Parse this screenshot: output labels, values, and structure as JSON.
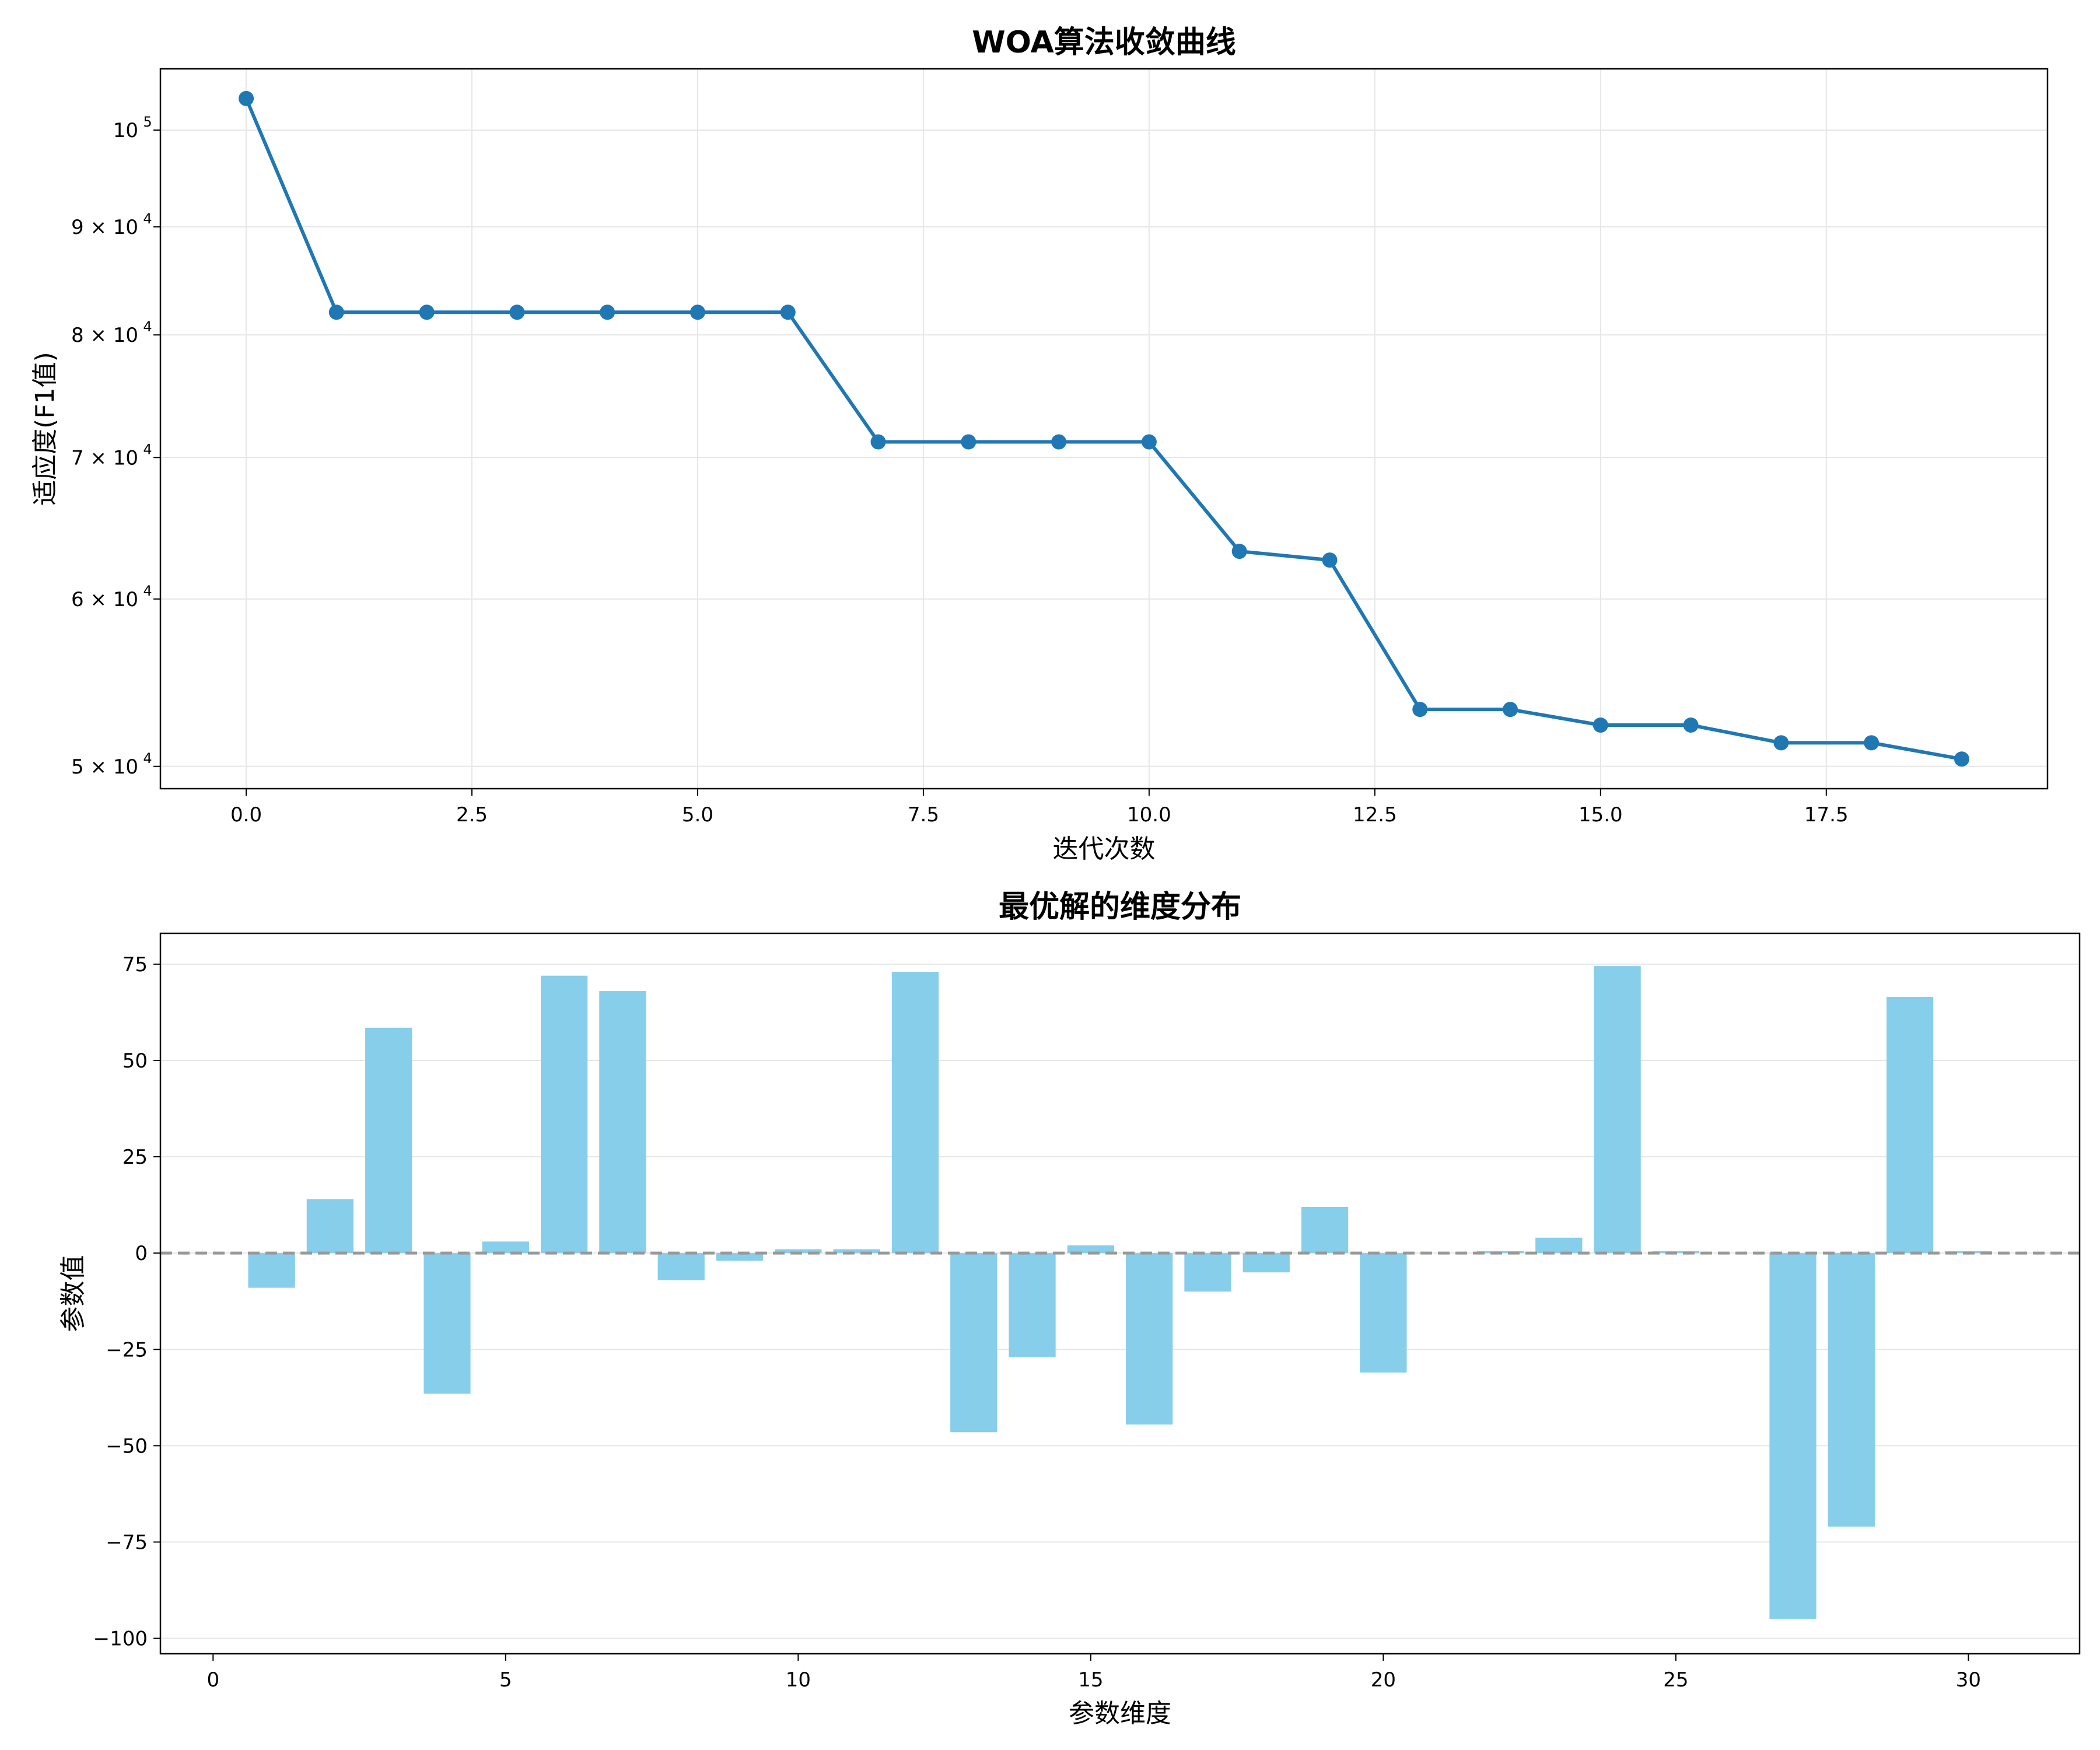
{
  "chart_data": [
    {
      "type": "line",
      "title": "WOA算法收敛曲线",
      "xlabel": "迭代次数",
      "ylabel": "适应度(F1值)",
      "yscale": "log",
      "xlim": [
        -0.95,
        19.95
      ],
      "ylim": [
        48800,
        106900
      ],
      "grid": true,
      "color": "#1f77b4",
      "marker": "circle",
      "x_ticks": [
        0.0,
        2.5,
        5.0,
        7.5,
        10.0,
        12.5,
        15.0,
        17.5
      ],
      "x_tick_labels": [
        "0.0",
        "2.5",
        "5.0",
        "7.5",
        "10.0",
        "12.5",
        "15.0",
        "17.5"
      ],
      "y_ticks": [
        {
          "value": 50000,
          "label": "5 × 10",
          "exp": "4"
        },
        {
          "value": 60000,
          "label": "6 × 10",
          "exp": "4"
        },
        {
          "value": 70000,
          "label": "7 × 10",
          "exp": "4"
        },
        {
          "value": 80000,
          "label": "8 × 10",
          "exp": "4"
        },
        {
          "value": 90000,
          "label": "9 × 10",
          "exp": "4"
        },
        {
          "value": 100000,
          "label": "10",
          "exp": "5"
        }
      ],
      "x": [
        0,
        1,
        2,
        3,
        4,
        5,
        6,
        7,
        8,
        9,
        10,
        11,
        12,
        13,
        14,
        15,
        16,
        17,
        18,
        19
      ],
      "y": [
        103500,
        82000,
        82000,
        82000,
        82000,
        82000,
        82000,
        71200,
        71200,
        71200,
        71200,
        63200,
        62600,
        53200,
        53200,
        52300,
        52300,
        51300,
        51300,
        50400
      ]
    },
    {
      "type": "bar",
      "title": "最优解的维度分布",
      "xlabel": "参数维度",
      "ylabel": "参数值",
      "xlim": [
        -0.9,
        31.9
      ],
      "ylim": [
        -104,
        83
      ],
      "grid": true,
      "grid_axis": "y",
      "color": "#87ceeb",
      "zero_line": {
        "value": 0,
        "style": "dashed",
        "color": "#999999"
      },
      "x_ticks": [
        0,
        5,
        10,
        15,
        20,
        25,
        30
      ],
      "x_tick_labels": [
        "0",
        "5",
        "10",
        "15",
        "20",
        "25",
        "30"
      ],
      "y_ticks": [
        -100,
        -75,
        -50,
        -25,
        0,
        25,
        50,
        75
      ],
      "y_tick_labels": [
        "−100",
        "−75",
        "−50",
        "−25",
        "0",
        "25",
        "50",
        "75"
      ],
      "bar_width": 0.8,
      "categories": [
        1,
        2,
        3,
        4,
        5,
        6,
        7,
        8,
        9,
        10,
        11,
        12,
        13,
        14,
        15,
        16,
        17,
        18,
        19,
        20,
        21,
        22,
        23,
        24,
        25,
        26,
        27,
        28,
        29,
        30
      ],
      "values": [
        -9,
        14,
        58.5,
        -36.5,
        3,
        72,
        68,
        -7,
        -2,
        1,
        1,
        73,
        -46.5,
        -27,
        2,
        -44.5,
        -10,
        -5,
        12,
        -31,
        0,
        0.5,
        4,
        74.5,
        0.5,
        0,
        -95,
        -71,
        66.5,
        0.5
      ]
    }
  ]
}
